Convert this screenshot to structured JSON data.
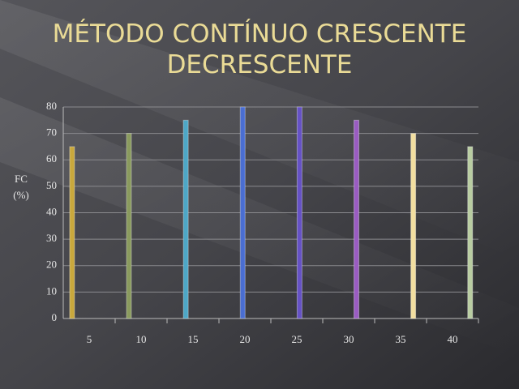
{
  "chart_data": {
    "type": "bar",
    "title": [
      "MÉTODO CONTÍNUO CRESCENTE",
      "DECRESCENTE"
    ],
    "y_label": [
      "FC",
      "(%)"
    ],
    "categories": [
      "5",
      "10",
      "15",
      "20",
      "25",
      "30",
      "35",
      "40"
    ],
    "values": [
      65,
      70,
      75,
      80,
      80,
      75,
      70,
      65
    ],
    "colors": [
      "#c9a83c",
      "#8a9a5e",
      "#4ea7c6",
      "#4a6ed2",
      "#6652c6",
      "#9a5cc2",
      "#f2dea0",
      "#b9cda2"
    ],
    "ylim": [
      0,
      80
    ],
    "yticks": [
      0,
      10,
      20,
      30,
      40,
      50,
      60,
      70,
      80
    ],
    "grid": true
  }
}
